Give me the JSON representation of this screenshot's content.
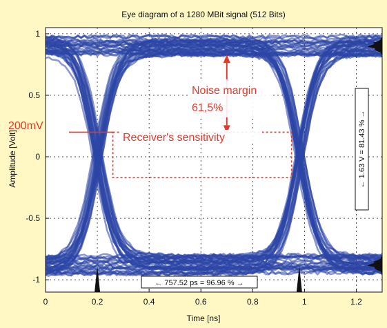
{
  "chart_data": {
    "type": "line",
    "title": "Eye diagram of a 1280 MBit signal (512 Bits)",
    "xlabel": "Time [ns]",
    "ylabel": "Amplitude [Volt]",
    "xlim": [
      0,
      1.3
    ],
    "ylim": [
      -1.1,
      1.05
    ],
    "xticks": [
      0,
      0.2,
      0.4,
      0.6,
      0.8,
      1,
      1.2
    ],
    "xtick_labels": [
      "0",
      "0.2",
      "0.4",
      "0.6",
      "0.8",
      "1",
      "1.2"
    ],
    "yticks": [
      1,
      0.5,
      0,
      -0.5,
      -1
    ],
    "ytick_labels": [
      "1",
      "0.5",
      "0",
      "-0.5",
      "-1"
    ],
    "grid": true,
    "colors": {
      "trace": "#2b46a6",
      "annotation": "#e03a2a",
      "marker": "#111111",
      "background": "#fff8c4"
    },
    "eye": {
      "high_level": 0.9,
      "low_level": -0.88,
      "crossing_times_ns": [
        0.2,
        0.98
      ],
      "upper_opening_top": [
        [
          0.2,
          0.02
        ],
        [
          0.3,
          0.55
        ],
        [
          0.45,
          0.73
        ],
        [
          0.55,
          0.73
        ],
        [
          0.7,
          0.82
        ],
        [
          0.8,
          0.82
        ],
        [
          0.9,
          0.6
        ],
        [
          0.98,
          0.02
        ]
      ],
      "lower_opening_bottom": [
        [
          0.2,
          -0.02
        ],
        [
          0.3,
          -0.55
        ],
        [
          0.42,
          -0.72
        ],
        [
          0.55,
          -0.8
        ],
        [
          0.68,
          -0.83
        ],
        [
          0.85,
          -0.75
        ],
        [
          0.92,
          -0.55
        ],
        [
          0.98,
          -0.02
        ]
      ]
    },
    "annotations": {
      "noise_margin_label": "Noise margin",
      "noise_margin_value": "61,5%",
      "noise_margin_range": [
        0.2,
        0.82
      ],
      "sensitivity_level_label": "200mV",
      "sensitivity_level": 0.2,
      "sensitivity_box_label": "Receiver's sensitivity",
      "sensitivity_box": {
        "x": [
          0.26,
          0.95
        ],
        "y": [
          -0.17,
          0.2
        ]
      },
      "horizontal_opening": "757.52 ps = 96.96 %",
      "vertical_opening": "1.63 V = 81.43 %"
    }
  }
}
